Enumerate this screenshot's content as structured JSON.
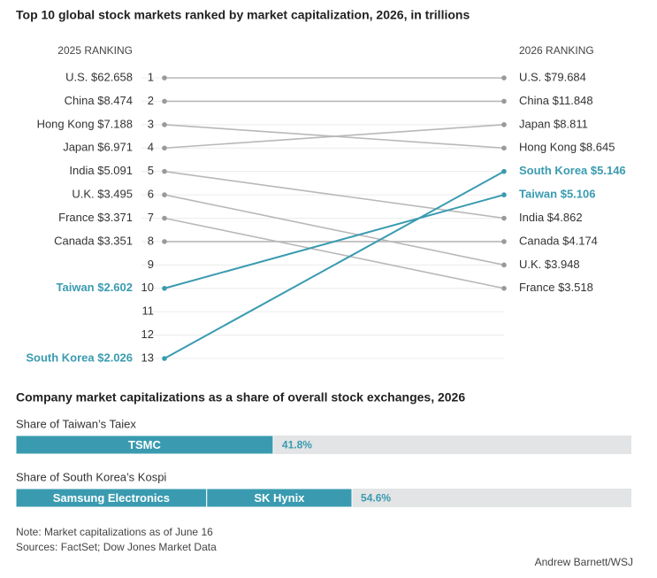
{
  "chart_data": [
    {
      "type": "slope",
      "title": "Top 10 global stock markets ranked by market capitalization, 2026, in trillions",
      "left_header": "2025 RANKING",
      "right_header": "2026 RANKING",
      "ylim": [
        1,
        13
      ],
      "yticks": [
        1,
        2,
        3,
        4,
        5,
        6,
        7,
        8,
        9,
        10,
        11,
        12,
        13
      ],
      "markets": [
        {
          "rank_2025": 1,
          "rank_2026": 1,
          "label_2025": "U.S. $62.658",
          "label_2026": "U.S. $79.684",
          "color": "#b8b8b8",
          "highlight": false
        },
        {
          "rank_2025": 2,
          "rank_2026": 2,
          "label_2025": "China $8.474",
          "label_2026": "China $11.848",
          "color": "#b8b8b8",
          "highlight": false
        },
        {
          "rank_2025": 3,
          "rank_2026": 4,
          "label_2025": "Hong Kong $7.188",
          "label_2026": "Hong Kong $8.645",
          "color": "#b8b8b8",
          "highlight": false
        },
        {
          "rank_2025": 4,
          "rank_2026": 3,
          "label_2025": "Japan $6.971",
          "label_2026": "Japan $8.811",
          "color": "#b8b8b8",
          "highlight": false
        },
        {
          "rank_2025": 5,
          "rank_2026": 7,
          "label_2025": "India $5.091",
          "label_2026": "India $4.862",
          "color": "#b8b8b8",
          "highlight": false
        },
        {
          "rank_2025": 6,
          "rank_2026": 9,
          "label_2025": "U.K. $3.495",
          "label_2026": "U.K. $3.948",
          "color": "#b8b8b8",
          "highlight": false
        },
        {
          "rank_2025": 7,
          "rank_2026": 10,
          "label_2025": "France $3.371",
          "label_2026": "France $3.518",
          "color": "#b8b8b8",
          "highlight": false
        },
        {
          "rank_2025": 8,
          "rank_2026": 8,
          "label_2025": "Canada $3.351",
          "label_2026": "Canada $4.174",
          "color": "#b8b8b8",
          "highlight": false
        },
        {
          "rank_2025": 10,
          "rank_2026": 6,
          "label_2025": "Taiwan $2.602",
          "label_2026": "Taiwan $5.106",
          "color": "#3a9bb0",
          "highlight": true
        },
        {
          "rank_2025": 13,
          "rank_2026": 5,
          "label_2025": "South Korea $2.026",
          "label_2026": "South Korea $5.146",
          "color": "#3a9bb0",
          "highlight": true
        }
      ]
    },
    {
      "type": "stacked_bar",
      "title": "Company market capitalizations as a share of overall stock exchanges, 2026",
      "xlim": [
        0,
        100
      ],
      "color": "#3a9bb0",
      "background": "#e2e4e5",
      "bars": [
        {
          "label": "Share of Taiwan’s Taiex",
          "segments": [
            {
              "name": "TSMC",
              "value": 41.8
            }
          ],
          "total": 41.8,
          "total_label": "41.8%"
        },
        {
          "label": "Share of South Korea’s Kospi",
          "segments": [
            {
              "name": "Samsung Electronics",
              "value": 31.0
            },
            {
              "name": "SK Hynix",
              "value": 23.6
            }
          ],
          "total": 54.6,
          "total_label": "54.6%"
        }
      ]
    }
  ],
  "footer": {
    "note": "Note: Market capitalizations as of June 16",
    "sources": "Sources: FactSet; Dow Jones Market Data",
    "credit": "Andrew Barnett/WSJ"
  }
}
